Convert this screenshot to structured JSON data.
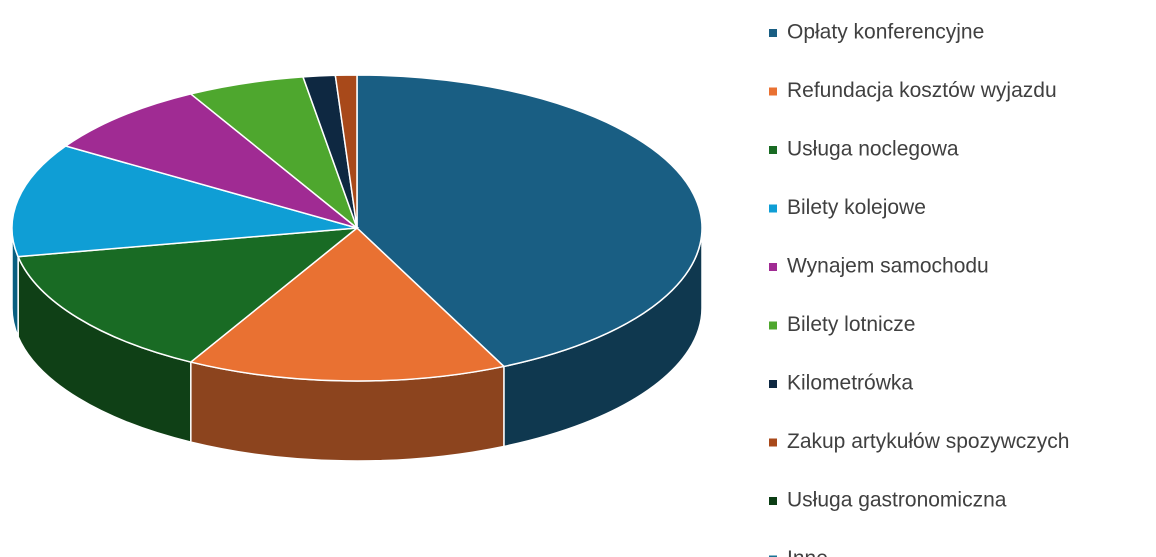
{
  "chart_data": {
    "type": "pie",
    "categories": [
      "Opłaty konferencyjne",
      "Refundacja kosztów wyjazdu",
      "Usługa noclegowa",
      "Bilety kolejowe",
      "Wynajem samochodu",
      "Bilety lotnicze",
      "Kilometrówka",
      "Zakup artykułów spozywczych",
      "Usługa gastronomiczna",
      "Inne"
    ],
    "values": [
      43,
      15,
      14,
      12,
      8,
      5.5,
      1.5,
      1,
      0,
      0
    ],
    "colors": [
      "#195e83",
      "#e97132",
      "#196b24",
      "#0f9ed5",
      "#a02b93",
      "#4ea72e",
      "#0e2841",
      "#a8491a",
      "#0b3d14",
      "#1a7396"
    ],
    "legend": "right"
  }
}
